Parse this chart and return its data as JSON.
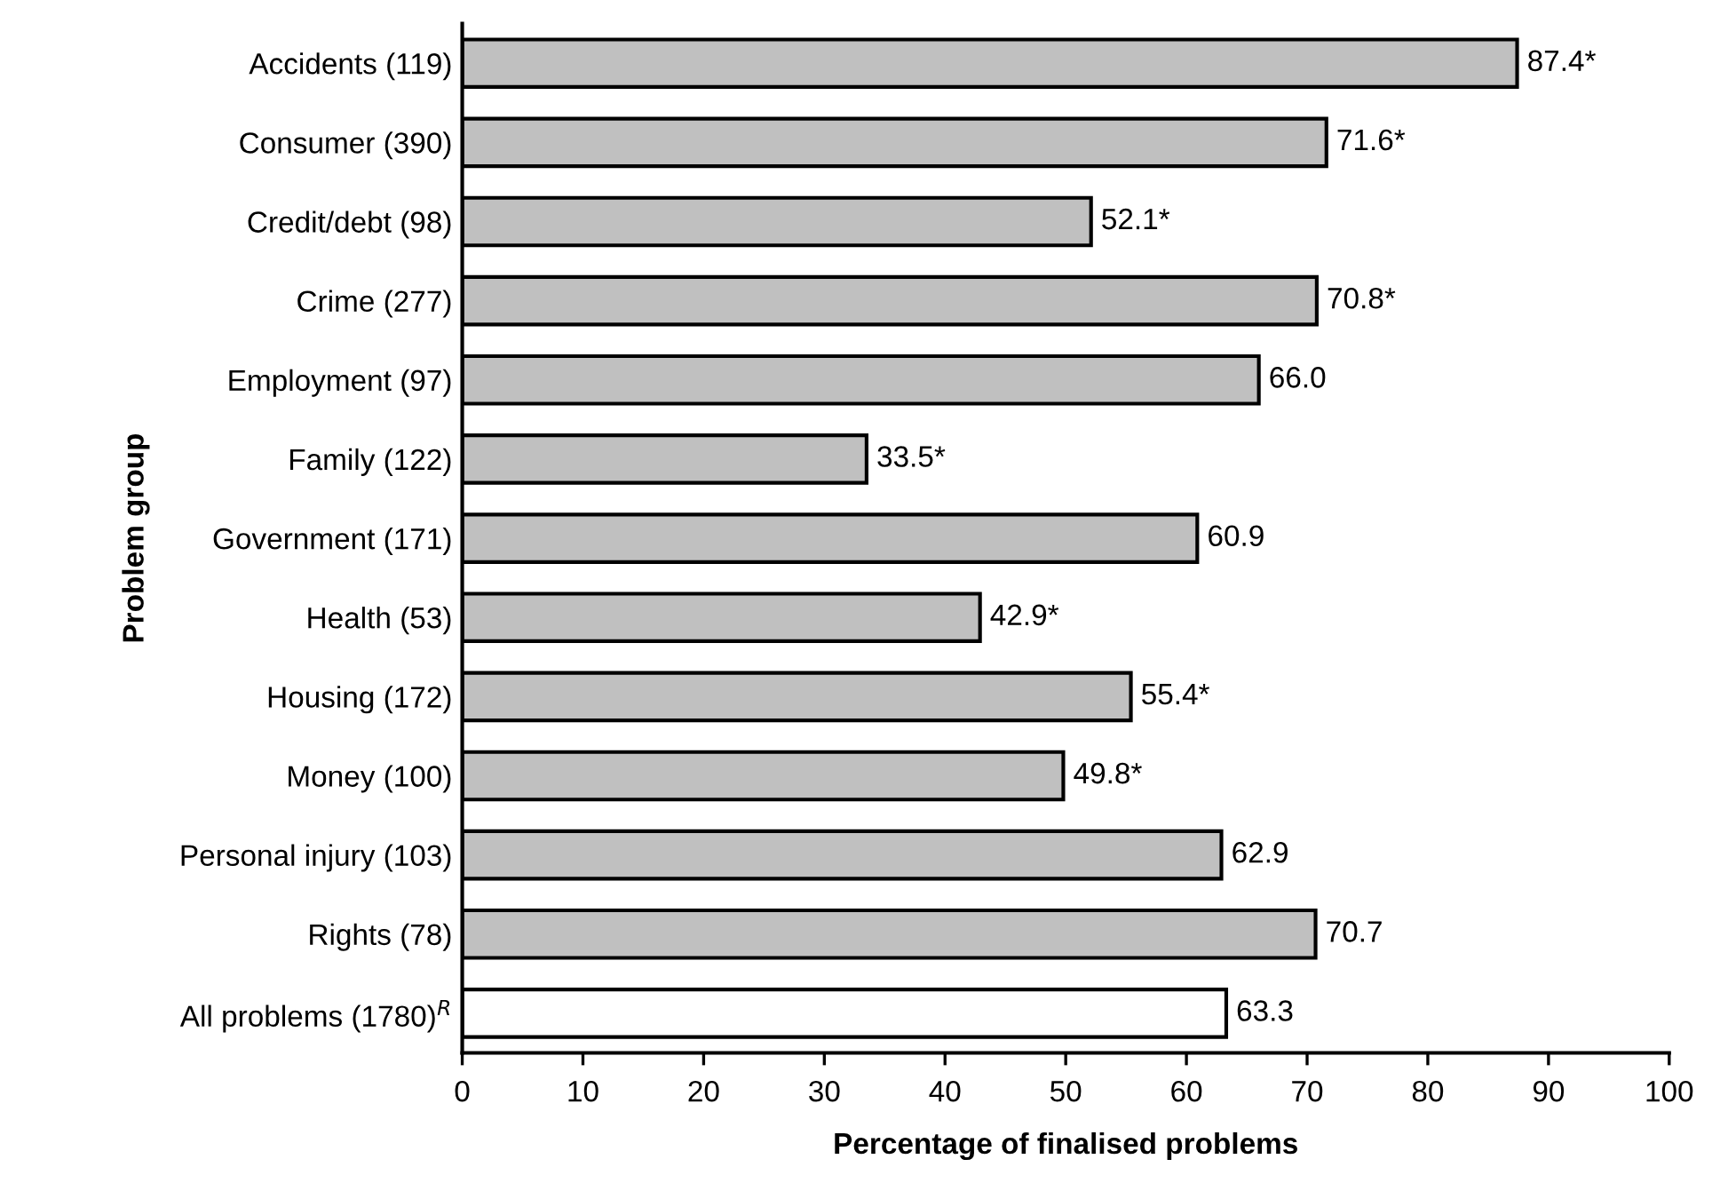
{
  "chart_data": {
    "type": "bar",
    "orientation": "horizontal",
    "ylabel": "Problem group",
    "xlabel": "Percentage of finalised problems",
    "categories": [
      "Accidents (119)",
      "Consumer (390)",
      "Credit/debt (98)",
      "Crime (277)",
      "Employment (97)",
      "Family (122)",
      "Government (171)",
      "Health (53)",
      "Housing (172)",
      "Money (100)",
      "Personal injury (103)",
      "Rights (78)",
      "All problems (1780)$^{R}$"
    ],
    "values": [
      87.4,
      71.6,
      52.1,
      70.8,
      66.0,
      33.5,
      60.9,
      42.9,
      55.4,
      49.8,
      62.9,
      70.7,
      63.3
    ],
    "colors": [
      "#c0c0c0",
      "#c0c0c0",
      "#c0c0c0",
      "#c0c0c0",
      "#c0c0c0",
      "#c0c0c0",
      "#c0c0c0",
      "#c0c0c0",
      "#c0c0c0",
      "#c0c0c0",
      "#c0c0c0",
      "#c0c0c0",
      "#ffffff"
    ],
    "value_labels": [
      "87.4*",
      "71.6*",
      "52.1*",
      "70.8*",
      "66.0",
      "33.5*",
      "60.9",
      "42.9*",
      "55.4*",
      "49.8*",
      "62.9",
      "70.7",
      "63.3"
    ],
    "xlim": [
      0,
      100
    ],
    "xticks": [
      0,
      10,
      20,
      30,
      40,
      50,
      60,
      70,
      80,
      90,
      100
    ],
    "grid": false,
    "legend": false
  }
}
